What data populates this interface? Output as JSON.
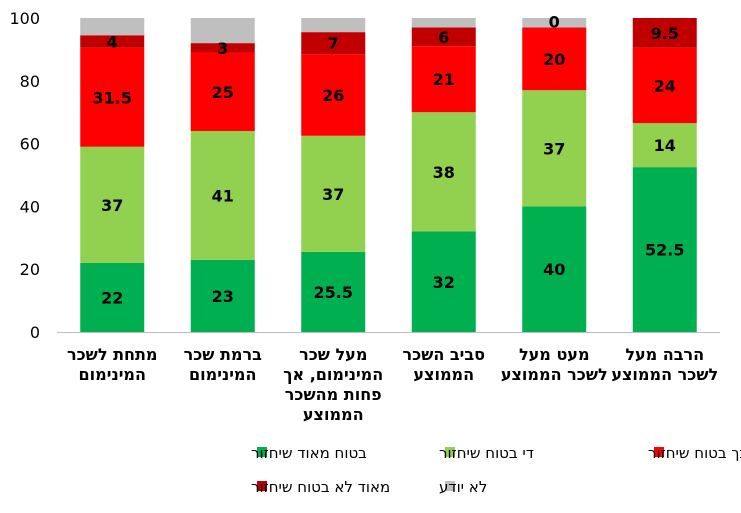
{
  "chart_data": {
    "type": "bar",
    "stacked": true,
    "title": "",
    "xlabel": "",
    "ylabel": "",
    "ylim": [
      0,
      100
    ],
    "yticks": [
      0,
      20,
      40,
      60,
      80,
      100
    ],
    "grid": false,
    "legend_position": "bottom",
    "categories": [
      [
        "מתחת לשכר",
        "המינימום"
      ],
      [
        "ברמת שכר",
        "המינימום"
      ],
      [
        "מעל שכר",
        "המינימום, אך",
        "פחות מהשכר",
        "הממוצע"
      ],
      [
        "סביב השכר",
        "הממוצע"
      ],
      [
        "מעט מעל",
        "לשכר הממוצע"
      ],
      [
        "הרבה מעל",
        "לשכר הממוצע"
      ]
    ],
    "series": [
      {
        "name": "בטוח מאוד שיחזור",
        "color": "#00b050",
        "values": [
          22,
          23,
          25.5,
          32,
          40,
          52.5
        ]
      },
      {
        "name": "די בטוח שיחזור",
        "color": "#92d050",
        "values": [
          37,
          41,
          37,
          38,
          37,
          14
        ]
      },
      {
        "name": "לא כל כך בטוח שיחזור",
        "color": "#ff0000",
        "values": [
          31.5,
          25,
          26,
          21,
          20,
          24
        ]
      },
      {
        "name": "מאוד לא בטוח שיחזור",
        "color": "#c00000",
        "values": [
          4,
          3,
          7,
          6,
          0,
          9.5
        ]
      },
      {
        "name": "לא יודע",
        "color": "#bfbfbf",
        "values": [
          5.5,
          8,
          4.5,
          3,
          3,
          0
        ]
      }
    ],
    "data_labels_series": [
      0,
      1,
      2,
      3
    ]
  }
}
